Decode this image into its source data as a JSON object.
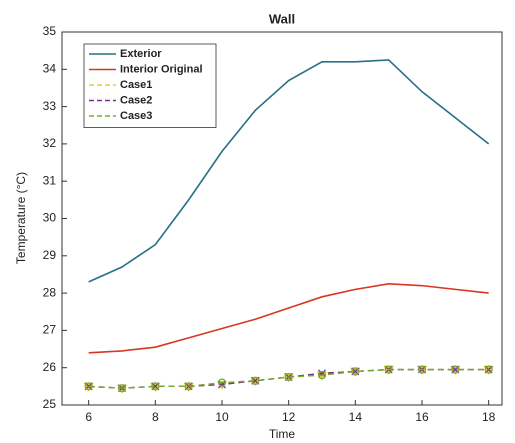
{
  "chart_data": {
    "type": "line",
    "title": "Wall",
    "x_label": "Time",
    "y_label": "Temperature (°C)",
    "x": [
      6,
      7,
      8,
      9,
      10,
      11,
      12,
      13,
      14,
      15,
      16,
      17,
      18
    ],
    "series": [
      {
        "name": "Exterior",
        "color": "#2a6f86",
        "values": [
          28.3,
          28.7,
          29.3,
          30.5,
          31.8,
          32.9,
          33.7,
          34.2,
          34.2,
          34.25,
          33.4,
          32.7,
          32.0
        ]
      },
      {
        "name": "Interior Original",
        "color": "#d9361e",
        "values": [
          26.4,
          26.45,
          26.55,
          26.8,
          27.05,
          27.3,
          27.6,
          27.9,
          28.1,
          28.25,
          28.2,
          28.1,
          28.0
        ]
      },
      {
        "name": "Case1",
        "color": "#e6c832",
        "values": [
          25.5,
          25.45,
          25.5,
          25.5,
          25.55,
          25.65,
          25.75,
          25.8,
          25.9,
          25.95,
          25.95,
          25.95,
          25.95
        ]
      },
      {
        "name": "Case2",
        "color": "#7e2f8e",
        "values": [
          25.5,
          25.45,
          25.5,
          25.5,
          25.55,
          25.65,
          25.75,
          25.85,
          25.9,
          25.95,
          25.95,
          25.95,
          25.95
        ]
      },
      {
        "name": "Case3",
        "color": "#77ac30",
        "values": [
          25.5,
          25.45,
          25.5,
          25.5,
          25.6,
          25.65,
          25.75,
          25.8,
          25.9,
          25.95,
          25.95,
          25.95,
          25.95
        ]
      }
    ],
    "xlim": [
      5.2,
      18.4
    ],
    "xticks": [
      6,
      8,
      10,
      12,
      14,
      16,
      18
    ],
    "ylim": [
      25,
      35
    ],
    "yticks": [
      25,
      26,
      27,
      28,
      29,
      30,
      31,
      32,
      33,
      34,
      35
    ],
    "legend": "upper left",
    "grid": false
  }
}
